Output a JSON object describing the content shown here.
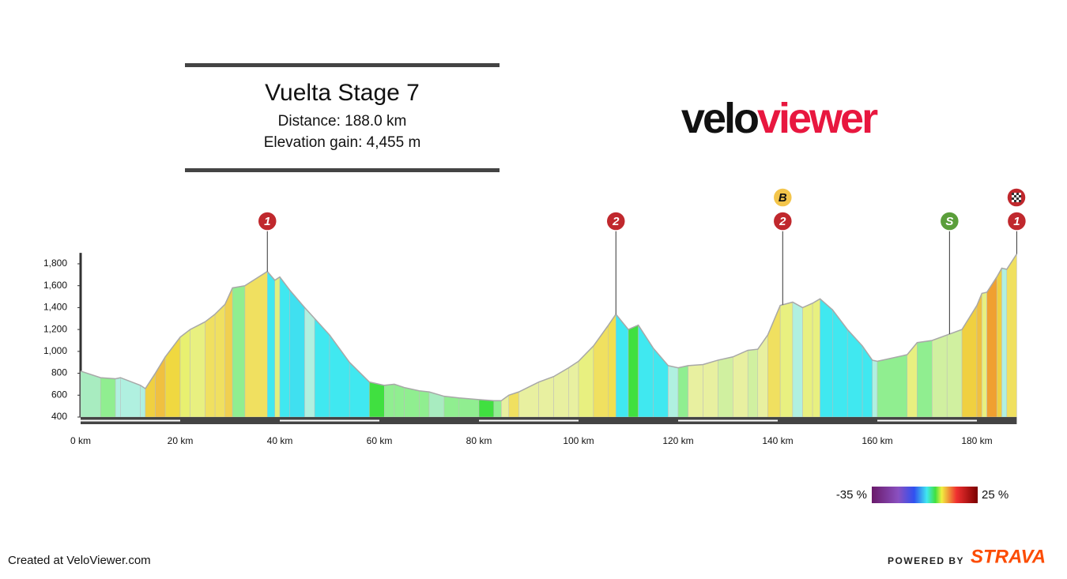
{
  "chart_data": {
    "type": "elevation",
    "title": "Vuelta Stage 7",
    "subtitle": "Distance: 188.0 km",
    "subtitle2": "Elevation gain: 4,455 m",
    "x": [
      0,
      4,
      7,
      8,
      12,
      13,
      15,
      17,
      20,
      22,
      25,
      27,
      29,
      30.5,
      33,
      37.5,
      39,
      40,
      42,
      45,
      47,
      50,
      54,
      58,
      61,
      63,
      65,
      68,
      70,
      73,
      76,
      80,
      83,
      84.5,
      86,
      88,
      92,
      95,
      98,
      100,
      103,
      106,
      107.5,
      110,
      112,
      115,
      118,
      120,
      122,
      125,
      128,
      131,
      134,
      136,
      138,
      140.5,
      143,
      145,
      147,
      148.5,
      151,
      154,
      157,
      159,
      160,
      166,
      168,
      171,
      174,
      177,
      180,
      181,
      182,
      184,
      185,
      186,
      188
    ],
    "values": [
      820,
      760,
      750,
      760,
      690,
      660,
      800,
      950,
      1130,
      1200,
      1270,
      1340,
      1430,
      1580,
      1600,
      1730,
      1650,
      1680,
      1560,
      1400,
      1300,
      1150,
      900,
      720,
      690,
      700,
      670,
      640,
      630,
      590,
      575,
      560,
      550,
      550,
      600,
      630,
      720,
      770,
      850,
      910,
      1050,
      1240,
      1340,
      1200,
      1240,
      1030,
      870,
      850,
      870,
      880,
      920,
      950,
      1010,
      1020,
      1150,
      1420,
      1450,
      1400,
      1440,
      1480,
      1380,
      1200,
      1050,
      920,
      910,
      970,
      1080,
      1100,
      1150,
      1200,
      1420,
      1530,
      1540,
      1680,
      1760,
      1750,
      1890
    ],
    "segment_colors": [
      "#a8ecc0",
      "#90ee90",
      "#b0f0e0",
      "#b0f0e0",
      "#b0f0e0",
      "#f0d040",
      "#f0c040",
      "#f0d840",
      "#e8f070",
      "#e8f080",
      "#f0e060",
      "#f0e060",
      "#f0d050",
      "#90ee90",
      "#f0e060",
      "#40e8f0",
      "#e0f080",
      "#40e8f0",
      "#40e0f0",
      "#b0f0e0",
      "#40e8f0",
      "#40e8f0",
      "#40e8f0",
      "#40e040",
      "#90ee90",
      "#90ee90",
      "#90ee90",
      "#90ee90",
      "#a8ecc0",
      "#90ee90",
      "#90ee90",
      "#40e040",
      "#90ee90",
      "#e8f0a0",
      "#f0e060",
      "#e8f0a0",
      "#e8f0a0",
      "#e8f0a0",
      "#e8f0a0",
      "#e8f080",
      "#f0e060",
      "#f0e050",
      "#40e8f0",
      "#40e040",
      "#40e8f0",
      "#40e8f0",
      "#b0f0e0",
      "#90ee90",
      "#e8f0a0",
      "#e8f0a0",
      "#d0f0a0",
      "#e8f0a0",
      "#d0f0a0",
      "#e8f0a0",
      "#f0e060",
      "#e8f080",
      "#b0f0e0",
      "#e8f080",
      "#e8f080",
      "#40e8f0",
      "#40e8f0",
      "#40e8f0",
      "#40e8f0",
      "#b0f0e0",
      "#90ee90",
      "#e8f080",
      "#90ee90",
      "#d0f0a0",
      "#d0f0a0",
      "#f0d040",
      "#f0c040",
      "#e8f080",
      "#f0a030",
      "#f0d040",
      "#b0f0e0",
      "#f0e060"
    ],
    "outline_color": "#a8a8a8",
    "xlim": [
      0,
      188
    ],
    "ylim": [
      400,
      1900
    ],
    "xticks": [
      {
        "value": 0,
        "label": "0 km"
      },
      {
        "value": 20,
        "label": "20 km"
      },
      {
        "value": 40,
        "label": "40 km"
      },
      {
        "value": 60,
        "label": "60 km"
      },
      {
        "value": 80,
        "label": "80 km"
      },
      {
        "value": 100,
        "label": "100 km"
      },
      {
        "value": 120,
        "label": "120 km"
      },
      {
        "value": 140,
        "label": "140 km"
      },
      {
        "value": 160,
        "label": "160 km"
      },
      {
        "value": 180,
        "label": "180 km"
      }
    ],
    "yticks": [
      400,
      600,
      800,
      {
        "value": 1000,
        "label": "1,000"
      },
      {
        "value": 1200,
        "label": "1,200"
      },
      {
        "value": 1400,
        "label": "1,400"
      },
      {
        "value": 1600,
        "label": "1,600"
      },
      {
        "value": 1800,
        "label": "1,800"
      }
    ],
    "markers": [
      {
        "x": 37.5,
        "badges": [
          {
            "label": "1",
            "color": "#c0282d"
          }
        ]
      },
      {
        "x": 107.5,
        "badges": [
          {
            "label": "2",
            "color": "#c0282d"
          }
        ]
      },
      {
        "x": 141,
        "badges": [
          {
            "label": "2",
            "color": "#c0282d"
          },
          {
            "label": "B",
            "color": "#f3c54b"
          }
        ]
      },
      {
        "x": 174.5,
        "badges": [
          {
            "label": "S",
            "color": "#5a9e3a"
          }
        ]
      },
      {
        "x": 188,
        "badges": [
          {
            "label": "1",
            "color": "#c0282d"
          }
        ]
      }
    ],
    "colorbar_labels": [
      "-35 %",
      "25 %"
    ]
  },
  "logo": {
    "part1": "velo",
    "part2": "viewer"
  },
  "footer": {
    "left": "Created at VeloViewer.com",
    "powered": "POWERED BY",
    "brand": "STRAVA"
  }
}
